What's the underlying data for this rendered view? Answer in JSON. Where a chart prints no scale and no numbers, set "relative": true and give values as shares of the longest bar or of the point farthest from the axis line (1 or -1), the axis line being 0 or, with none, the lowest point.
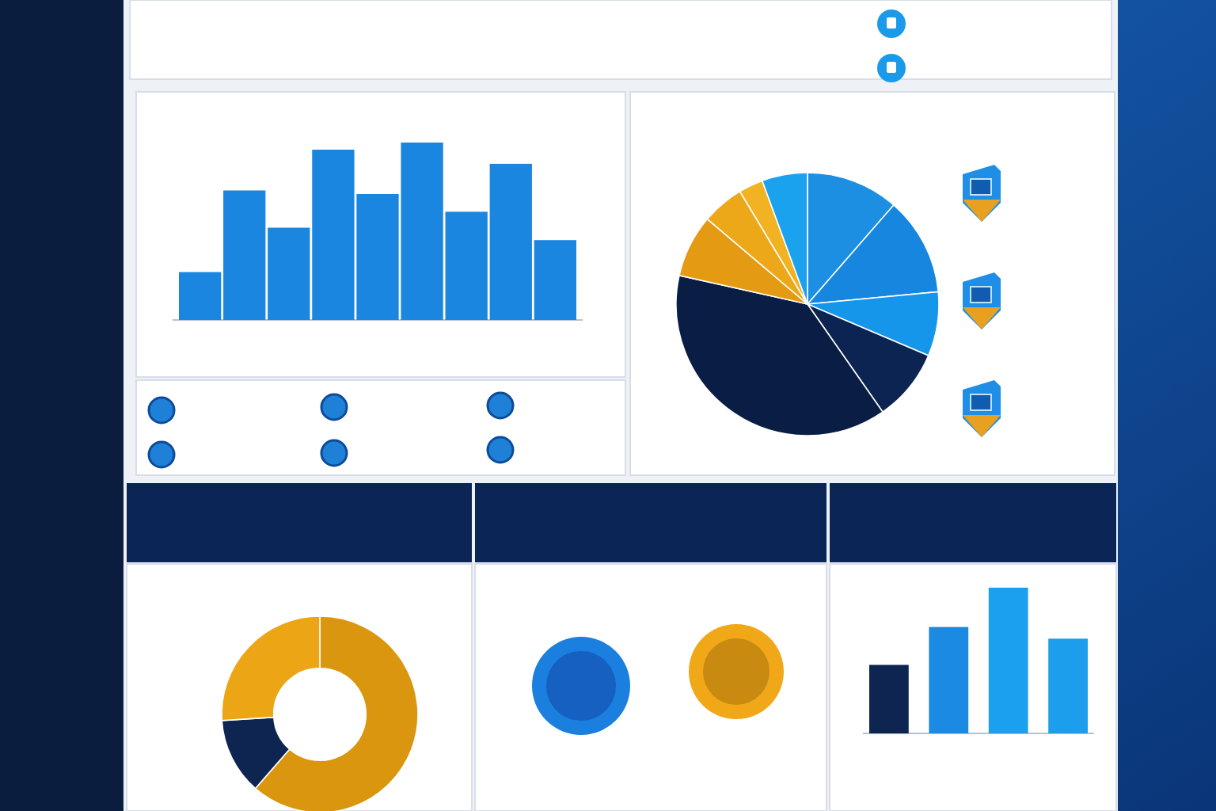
{
  "chart_data": [
    {
      "type": "bar",
      "relative": true,
      "categories": [
        null,
        null,
        null,
        null,
        null,
        null,
        null,
        null,
        null
      ],
      "color": "#1a86e0",
      "values": [
        0.27,
        0.73,
        0.52,
        0.96,
        0.71,
        1,
        0.61,
        0.88,
        0.45
      ]
    },
    {
      "type": "pie",
      "categories": [
        null,
        null,
        null,
        null,
        null,
        null,
        null,
        null,
        null
      ],
      "values": [
        11.4,
        12.1,
        7.9,
        8.9,
        38.2,
        7.7,
        5.2,
        3.0,
        5.6
      ],
      "colors": [
        "#1c8fe2",
        "#1686de",
        "#1596ea",
        "#0c2452",
        "#0a1e45",
        "#e49a12",
        "#eda819",
        "#f2b322",
        "#1aa2ee"
      ]
    },
    {
      "type": "donut",
      "categories": [
        null,
        null,
        null
      ],
      "values": [
        61.4,
        12.6,
        26.0
      ],
      "colors": [
        "#d9960e",
        "#0d2550",
        "#eca515"
      ]
    },
    {
      "type": "bar",
      "relative": true,
      "categories": [
        null,
        null,
        null,
        null
      ],
      "values": [
        0.47,
        0.73,
        1,
        0.65
      ],
      "colors": [
        "#0d2550",
        "#1a8ae2",
        "#1aa0ee",
        "#1c9eec"
      ]
    }
  ]
}
